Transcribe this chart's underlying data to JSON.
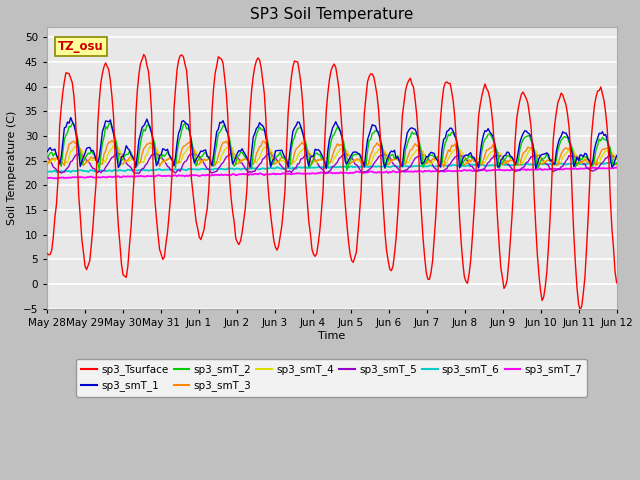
{
  "title": "SP3 Soil Temperature",
  "xlabel": "Time",
  "ylabel": "Soil Temperature (C)",
  "ylim": [
    -5,
    52
  ],
  "yticks": [
    -5,
    0,
    5,
    10,
    15,
    20,
    25,
    30,
    35,
    40,
    45,
    50
  ],
  "plot_bg_color": "#e8e8e8",
  "fig_bg_color": "#c8c8c8",
  "annotation_text": "TZ_osu",
  "annotation_color": "#cc0000",
  "annotation_bg": "#ffff99",
  "annotation_border": "#888800",
  "series_colors": {
    "sp3_Tsurface": "#ff0000",
    "sp3_smT_1": "#0000cc",
    "sp3_smT_2": "#00cc00",
    "sp3_smT_3": "#ff8800",
    "sp3_smT_4": "#dddd00",
    "sp3_smT_5": "#9900cc",
    "sp3_smT_6": "#00cccc",
    "sp3_smT_7": "#ff00ff"
  },
  "tick_labels": [
    "May 28",
    "May 29",
    "May 30",
    "May 31",
    "Jun 1",
    "Jun 2",
    "Jun 3",
    "Jun 4",
    "Jun 5",
    "Jun 6",
    "Jun 7",
    "Jun 8",
    "Jun 9",
    "Jun 10",
    "Jun 11",
    "Jun 12"
  ],
  "legend_row1": [
    "sp3_Tsurface",
    "sp3_smT_1",
    "sp3_smT_2",
    "sp3_smT_3",
    "sp3_smT_4",
    "sp3_smT_5"
  ],
  "legend_row2": [
    "sp3_smT_6",
    "sp3_smT_7"
  ]
}
